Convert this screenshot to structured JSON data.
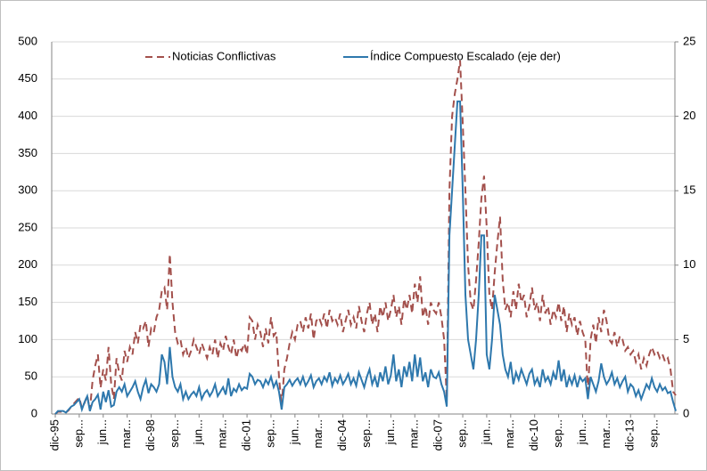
{
  "chart_data": {
    "type": "line",
    "categories": [
      "dic-95",
      null,
      null,
      null,
      null,
      null,
      null,
      null,
      null,
      "sep...",
      null,
      null,
      null,
      null,
      null,
      null,
      null,
      null,
      "jun...",
      null,
      null,
      null,
      null,
      null,
      null,
      null,
      null,
      "mar...",
      null,
      null,
      null,
      null,
      null,
      null,
      null,
      null,
      "dic-98",
      null,
      null,
      null,
      null,
      null,
      null,
      null,
      null,
      "sep...",
      null,
      null,
      null,
      null,
      null,
      null,
      null,
      null,
      "jun...",
      null,
      null,
      null,
      null,
      null,
      null,
      null,
      null,
      "mar...",
      null,
      null,
      null,
      null,
      null,
      null,
      null,
      null,
      "dic-01",
      null,
      null,
      null,
      null,
      null,
      null,
      null,
      null,
      "sep...",
      null,
      null,
      null,
      null,
      null,
      null,
      null,
      null,
      "jun...",
      null,
      null,
      null,
      null,
      null,
      null,
      null,
      null,
      "mar...",
      null,
      null,
      null,
      null,
      null,
      null,
      null,
      null,
      "dic-04",
      null,
      null,
      null,
      null,
      null,
      null,
      null,
      null,
      "sep...",
      null,
      null,
      null,
      null,
      null,
      null,
      null,
      null,
      "jun...",
      null,
      null,
      null,
      null,
      null,
      null,
      null,
      null,
      "mar...",
      null,
      null,
      null,
      null,
      null,
      null,
      null,
      null,
      "dic-07",
      null,
      null,
      null,
      null,
      null,
      null,
      null,
      null,
      "sep...",
      null,
      null,
      null,
      null,
      null,
      null,
      null,
      null,
      "jun...",
      null,
      null,
      null,
      null,
      null,
      null,
      null,
      null,
      "mar...",
      null,
      null,
      null,
      null,
      null,
      null,
      null,
      null,
      "dic-10",
      null,
      null,
      null,
      null,
      null,
      null,
      null,
      null,
      "sep...",
      null,
      null,
      null,
      null,
      null,
      null,
      null,
      null,
      "jun...",
      null,
      null,
      null,
      null,
      null,
      null,
      null,
      null,
      "mar...",
      null,
      null,
      null,
      null,
      null,
      null,
      null,
      null,
      "dic-13",
      null,
      null,
      null,
      null,
      null,
      null,
      null,
      null,
      "sep...",
      null,
      null,
      null,
      null,
      null,
      null,
      null,
      null
    ],
    "series": [
      {
        "name": "Noticias Conflictivas",
        "color": "#a3504c",
        "dash": true,
        "values": [
          0,
          3,
          3,
          3,
          2,
          5,
          10,
          14,
          18,
          22,
          8,
          15,
          25,
          5,
          45,
          65,
          80,
          35,
          60,
          45,
          90,
          40,
          20,
          75,
          55,
          45,
          85,
          70,
          90,
          80,
          110,
          95,
          120,
          115,
          125,
          90,
          115,
          110,
          130,
          140,
          165,
          170,
          140,
          215,
          150,
          110,
          95,
          100,
          80,
          90,
          75,
          85,
          100,
          90,
          80,
          95,
          85,
          75,
          90,
          80,
          100,
          75,
          95,
          85,
          105,
          90,
          80,
          100,
          75,
          90,
          85,
          95,
          80,
          130,
          125,
          100,
          120,
          110,
          90,
          115,
          95,
          130,
          105,
          110,
          50,
          10,
          60,
          75,
          95,
          110,
          100,
          120,
          125,
          110,
          130,
          115,
          135,
          100,
          125,
          130,
          120,
          135,
          115,
          140,
          125,
          130,
          120,
          135,
          110,
          125,
          140,
          120,
          130,
          115,
          145,
          125,
          110,
          135,
          150,
          120,
          135,
          110,
          145,
          130,
          150,
          125,
          140,
          160,
          130,
          145,
          120,
          155,
          140,
          160,
          135,
          175,
          150,
          185,
          130,
          145,
          120,
          150,
          140,
          135,
          150,
          130,
          100,
          20,
          300,
          400,
          430,
          450,
          475,
          390,
          300,
          200,
          150,
          140,
          180,
          230,
          290,
          320,
          250,
          160,
          140,
          190,
          230,
          265,
          180,
          140,
          150,
          130,
          165,
          140,
          175,
          150,
          160,
          130,
          145,
          170,
          140,
          150,
          125,
          160,
          135,
          145,
          120,
          140,
          130,
          150,
          125,
          145,
          110,
          135,
          120,
          130,
          105,
          125,
          110,
          100,
          30,
          100,
          120,
          95,
          130,
          110,
          140,
          125,
          100,
          95,
          110,
          90,
          105,
          100,
          85,
          90,
          80,
          85,
          70,
          80,
          60,
          75,
          65,
          80,
          90,
          80,
          85,
          75,
          80,
          70,
          75,
          60,
          30,
          25
        ]
      },
      {
        "name": "Índice Compuesto Escalado (eje der)",
        "color": "#2e78ad",
        "axis": "y2",
        "values": [
          0,
          0.2,
          0.2,
          0.2,
          0.1,
          0.3,
          0.5,
          0.6,
          0.8,
          1.0,
          0.3,
          0.8,
          1.2,
          0.2,
          0.8,
          1.0,
          1.3,
          0.3,
          1.5,
          0.8,
          1.6,
          0.5,
          0.6,
          1.5,
          1.8,
          1.5,
          2.0,
          1.2,
          1.5,
          1.8,
          2.2,
          1.5,
          1.0,
          1.8,
          2.3,
          1.4,
          2.0,
          1.8,
          1.5,
          2.0,
          4.0,
          3.5,
          2.0,
          4.5,
          2.5,
          1.8,
          1.5,
          2.0,
          1.0,
          1.5,
          1.0,
          1.3,
          1.5,
          1.2,
          1.8,
          1.0,
          1.4,
          1.6,
          1.2,
          1.5,
          2.0,
          1.2,
          1.5,
          1.8,
          1.3,
          2.4,
          1.2,
          1.7,
          1.5,
          2.0,
          1.6,
          1.8,
          1.7,
          2.7,
          2.5,
          2.0,
          2.3,
          2.2,
          1.8,
          2.3,
          2.0,
          2.5,
          1.8,
          2.2,
          1.5,
          0.3,
          1.8,
          2.0,
          2.3,
          1.9,
          2.2,
          2.4,
          2.0,
          2.5,
          1.9,
          2.2,
          2.6,
          1.8,
          2.2,
          2.4,
          2.0,
          2.5,
          2.2,
          2.8,
          1.9,
          2.4,
          2.1,
          2.6,
          2.0,
          2.3,
          2.7,
          2.0,
          2.4,
          1.9,
          2.8,
          2.3,
          1.8,
          2.5,
          3.0,
          2.0,
          2.5,
          1.8,
          2.8,
          2.2,
          3.2,
          2.0,
          2.6,
          4.0,
          2.2,
          3.0,
          1.8,
          3.2,
          2.5,
          3.5,
          2.2,
          4.0,
          2.5,
          3.8,
          2.2,
          2.8,
          1.8,
          3.0,
          2.5,
          2.4,
          2.8,
          2.0,
          1.5,
          0.5,
          12,
          15,
          18,
          21,
          21,
          15,
          8,
          5,
          4,
          3,
          5,
          8,
          12,
          12,
          4,
          3,
          5,
          8,
          7,
          6,
          4,
          3,
          2.5,
          3.5,
          2.0,
          2.8,
          2.3,
          3.0,
          2.5,
          2.0,
          2.7,
          3.0,
          2.0,
          2.4,
          1.8,
          3.0,
          2.2,
          2.5,
          2.0,
          2.8,
          2.3,
          3.6,
          2.2,
          3.0,
          1.8,
          2.5,
          2.0,
          2.6,
          1.8,
          2.5,
          2.2,
          2.4,
          1.0,
          2.5,
          2.0,
          1.5,
          2.2,
          3.4,
          2.5,
          2.0,
          2.3,
          2.8,
          2.0,
          2.4,
          1.8,
          2.2,
          2.5,
          1.5,
          2.0,
          1.8,
          1.2,
          1.6,
          1.0,
          1.5,
          2.0,
          1.7,
          2.4,
          1.8,
          1.5,
          2.0,
          1.6,
          1.8,
          1.4,
          1.5,
          0.8,
          0.2
        ]
      }
    ],
    "ylim": [
      0,
      500
    ],
    "yticks": [
      0,
      50,
      100,
      150,
      200,
      250,
      300,
      350,
      400,
      450,
      500
    ],
    "y2lim": [
      0,
      25
    ],
    "y2ticks": [
      0,
      5,
      10,
      15,
      20,
      25
    ],
    "grid": true,
    "legend": "top"
  }
}
